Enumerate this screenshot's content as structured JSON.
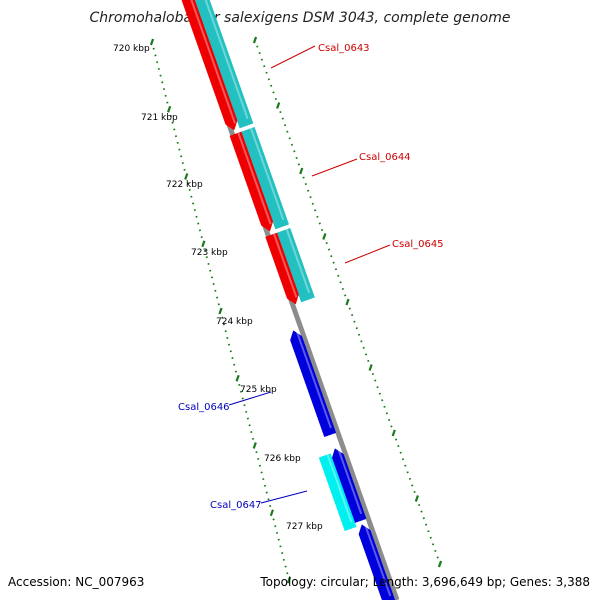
{
  "title": "Chromohalobacter salexigens DSM 3043, complete genome",
  "footer": {
    "accession": "Accession: NC_007963",
    "summary": "Topology: circular; Length: 3,696,649 bp; Genes: 3,388"
  },
  "colors": {
    "backbone": "#8c8c8c",
    "cds_forward": "#ee0000",
    "cds_reverse": "#0000dd",
    "gene_forward": "#22c0c0",
    "gene_reverse": "#00f0f0",
    "ruler": "#1a7a1a",
    "label_forward": "#cc0000",
    "label_reverse": "#0000bb"
  },
  "ruler": {
    "unit": "kbp",
    "ticks": [
      {
        "label": "720 kbp"
      },
      {
        "label": "721 kbp"
      },
      {
        "label": "722 kbp"
      },
      {
        "label": "723 kbp"
      },
      {
        "label": "724 kbp"
      },
      {
        "label": "725 kbp"
      },
      {
        "label": "726 kbp"
      },
      {
        "label": "727 kbp"
      }
    ]
  },
  "genes": [
    {
      "name": "Csal_0643",
      "strand": "+"
    },
    {
      "name": "Csal_0644",
      "strand": "+"
    },
    {
      "name": "Csal_0645",
      "strand": "+"
    },
    {
      "name": "Csal_0646",
      "strand": "-"
    },
    {
      "name": "Csal_0647",
      "strand": "-"
    }
  ]
}
